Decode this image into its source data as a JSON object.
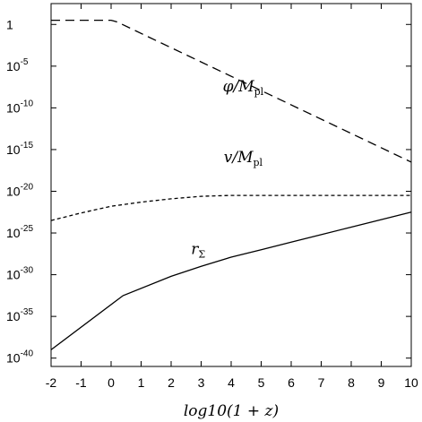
{
  "chart_data": {
    "type": "line",
    "title": "",
    "xlabel": "log10(1 + z)",
    "ylabel": "",
    "xlim": [
      -2,
      10
    ],
    "ylim_log10": [
      -41,
      2.5
    ],
    "yscale": "log",
    "grid": false,
    "legend": "none",
    "x_ticks": [
      "-2",
      "-1",
      "0",
      "1",
      "2",
      "3",
      "4",
      "5",
      "6",
      "7",
      "8",
      "9",
      "10"
    ],
    "y_ticks": [
      {
        "base": "1",
        "exp": ""
      },
      {
        "base": "10",
        "exp": "-5"
      },
      {
        "base": "10",
        "exp": "-10"
      },
      {
        "base": "10",
        "exp": "-15"
      },
      {
        "base": "10",
        "exp": "-20"
      },
      {
        "base": "10",
        "exp": "-25"
      },
      {
        "base": "10",
        "exp": "-30"
      },
      {
        "base": "10",
        "exp": "-35"
      },
      {
        "base": "10",
        "exp": "-40"
      }
    ],
    "y_tick_values_log10": [
      0,
      -5,
      -10,
      -15,
      -20,
      -25,
      -30,
      -35,
      -40
    ],
    "series": [
      {
        "label_main": "φ/M",
        "label_sub": "pl",
        "style": "dashed",
        "x": [
          -2,
          0,
          0.2,
          10
        ],
        "y_log10": [
          0.5,
          0.5,
          0.3,
          -16.5
        ]
      },
      {
        "label_main": "v/M",
        "label_sub": "pl",
        "style": "dotted",
        "x": [
          -2,
          -1,
          0,
          1,
          2,
          3,
          4,
          5,
          6,
          7,
          8,
          9,
          10
        ],
        "y_log10": [
          -23.5,
          -22.6,
          -21.8,
          -21.3,
          -20.9,
          -20.6,
          -20.5,
          -20.5,
          -20.5,
          -20.5,
          -20.5,
          -20.5,
          -20.5
        ]
      },
      {
        "label_main": "r",
        "label_sub": "Σ",
        "style": "solid",
        "x": [
          -2,
          0.4,
          2,
          3,
          4,
          5,
          6,
          7,
          8,
          9,
          10
        ],
        "y_log10": [
          -39,
          -32.5,
          -30.2,
          -29.0,
          -27.9,
          -27.0,
          -26.1,
          -25.2,
          -24.3,
          -23.4,
          -22.5
        ]
      }
    ],
    "label_positions": [
      {
        "x": 4.4,
        "y_log10": -8
      },
      {
        "x": 4.4,
        "y_log10": -16.5
      },
      {
        "x": 2.9,
        "y_log10": -27.5
      }
    ]
  }
}
